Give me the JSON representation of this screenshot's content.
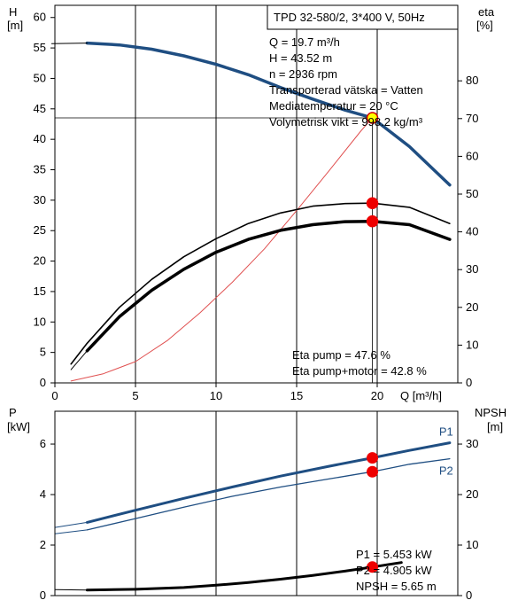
{
  "chart_data": [
    {
      "type": "line",
      "x_range": [
        0,
        25
      ],
      "x_ticks": [
        0,
        5,
        10,
        15,
        20
      ],
      "xlabel": "Q [m³/h]",
      "left_axis": {
        "label": "H",
        "unit": "[m]",
        "range": [
          0,
          62
        ],
        "ticks": [
          0,
          5,
          10,
          15,
          20,
          25,
          30,
          35,
          40,
          45,
          50,
          55,
          60
        ]
      },
      "right_axis": {
        "label": "eta",
        "unit": "[%]",
        "range": [
          0,
          100
        ],
        "ticks": [
          0,
          10,
          20,
          30,
          40,
          50,
          60,
          70,
          80
        ]
      },
      "title_box": "TPD 32-580/2, 3*400 V, 50Hz",
      "info_lines": [
        "Q = 19.7 m³/h",
        "H = 43.52 m",
        "n = 2936 rpm",
        "Transporterad vätska = Vatten",
        "Mediatemperatur = 20 °C",
        "Volymetrisk vikt = 998.2 kg/m³"
      ],
      "eta_lines": [
        "Eta pump = 47.6 %",
        "Eta pump+motor = 42.8 %"
      ],
      "series": [
        {
          "axis": "left",
          "color": "#1f4e82",
          "width": 3.5,
          "x": [
            2,
            4,
            6,
            8,
            10,
            12,
            14,
            16,
            18,
            19.7,
            22,
            24.5
          ],
          "y": [
            55.8,
            55.5,
            54.8,
            53.7,
            52.3,
            50.6,
            48.5,
            46.6,
            44.8,
            43.52,
            38.8,
            32.5
          ]
        },
        {
          "axis": "left",
          "color": "#000000",
          "width": 1,
          "dash": "",
          "x": [
            -0.2,
            2
          ],
          "y": [
            55.7,
            55.8
          ]
        },
        {
          "axis": "left",
          "color": "#e05050",
          "width": 1,
          "x": [
            1,
            3,
            5,
            7,
            9,
            11,
            13,
            15,
            17,
            19,
            19.7
          ],
          "y": [
            0.3,
            1.5,
            3.5,
            7,
            11.5,
            16.5,
            22,
            28.3,
            34.8,
            41.4,
            43.52
          ]
        },
        {
          "axis": "right",
          "color": "#000000",
          "width": 1.6,
          "x": [
            1,
            2,
            4,
            6,
            8,
            10,
            12,
            14,
            16,
            18,
            19.7,
            22,
            24.5
          ],
          "y": [
            5,
            10.5,
            20,
            27.4,
            33.4,
            38.2,
            42.2,
            45,
            46.8,
            47.5,
            47.6,
            46.5,
            42.2
          ]
        },
        {
          "axis": "right",
          "color": "#000000",
          "width": 3.5,
          "x": [
            2,
            4,
            6,
            8,
            10,
            12,
            14,
            16,
            18,
            19.7,
            22,
            24.5
          ],
          "y": [
            8.5,
            17.5,
            24.5,
            30.1,
            34.6,
            38,
            40.4,
            41.9,
            42.7,
            42.8,
            41.9,
            38
          ]
        },
        {
          "axis": "right",
          "color": "#000000",
          "width": 1,
          "x": [
            1,
            2
          ],
          "y": [
            3.5,
            8.5
          ]
        }
      ],
      "markers": [
        {
          "axis": "left",
          "x": 19.7,
          "y": 43.52,
          "fill": "#ffff00",
          "stroke": "#d00000"
        },
        {
          "axis": "right",
          "x": 19.7,
          "y": 47.6,
          "fill": "#ee0000",
          "stroke": "#ee0000"
        },
        {
          "axis": "right",
          "x": 19.7,
          "y": 42.8,
          "fill": "#ee0000",
          "stroke": "#ee0000"
        }
      ]
    },
    {
      "type": "line",
      "x_range": [
        0,
        25
      ],
      "left_axis": {
        "label": "P",
        "unit": "[kW]",
        "range": [
          0,
          7.3
        ],
        "ticks": [
          0,
          2,
          4,
          6
        ]
      },
      "right_axis": {
        "label": "NPSH",
        "unit": "[m]",
        "range": [
          0,
          36.5
        ],
        "ticks": [
          0,
          10,
          20,
          30
        ]
      },
      "info_lines": [
        "P1 = 5.453 kW",
        "P2 = 4.905 kW",
        "NPSH = 5.65 m"
      ],
      "series": [
        {
          "name": "P1",
          "axis": "left",
          "color": "#1f4e82",
          "width": 3,
          "x": [
            2,
            5,
            8,
            11,
            14,
            17,
            19.7,
            22,
            24.5
          ],
          "y": [
            2.9,
            3.38,
            3.85,
            4.3,
            4.73,
            5.12,
            5.453,
            5.75,
            6.05
          ]
        },
        {
          "name": "P2",
          "axis": "left",
          "color": "#1f4e82",
          "width": 1.3,
          "x": [
            2,
            5,
            8,
            11,
            14,
            17,
            19.7,
            22,
            24.5
          ],
          "y": [
            2.6,
            3.05,
            3.5,
            3.93,
            4.3,
            4.62,
            4.905,
            5.2,
            5.42
          ]
        },
        {
          "axis": "left",
          "color": "#1f4e82",
          "width": 1,
          "x": [
            0,
            2
          ],
          "y": [
            2.7,
            2.9
          ]
        },
        {
          "axis": "left",
          "color": "#1f4e82",
          "width": 1,
          "x": [
            0,
            2
          ],
          "y": [
            2.45,
            2.6
          ]
        },
        {
          "axis": "right",
          "color": "#000000",
          "width": 3,
          "x": [
            2,
            5,
            8,
            10,
            12,
            14,
            16,
            18,
            19.7,
            21.5
          ],
          "y": [
            1.1,
            1.25,
            1.6,
            2.05,
            2.6,
            3.25,
            4.0,
            4.85,
            5.65,
            6.55
          ]
        },
        {
          "axis": "right",
          "color": "#000000",
          "width": 1,
          "x": [
            0,
            2
          ],
          "y": [
            1.2,
            1.1
          ]
        }
      ],
      "markers": [
        {
          "axis": "left",
          "x": 19.7,
          "y": 5.453,
          "fill": "#ee0000",
          "stroke": "#ee0000"
        },
        {
          "axis": "left",
          "x": 19.7,
          "y": 4.905,
          "fill": "#ee0000",
          "stroke": "#ee0000"
        },
        {
          "axis": "right",
          "x": 19.7,
          "y": 5.65,
          "fill": "#ee0000",
          "stroke": "#ee0000"
        }
      ]
    }
  ]
}
